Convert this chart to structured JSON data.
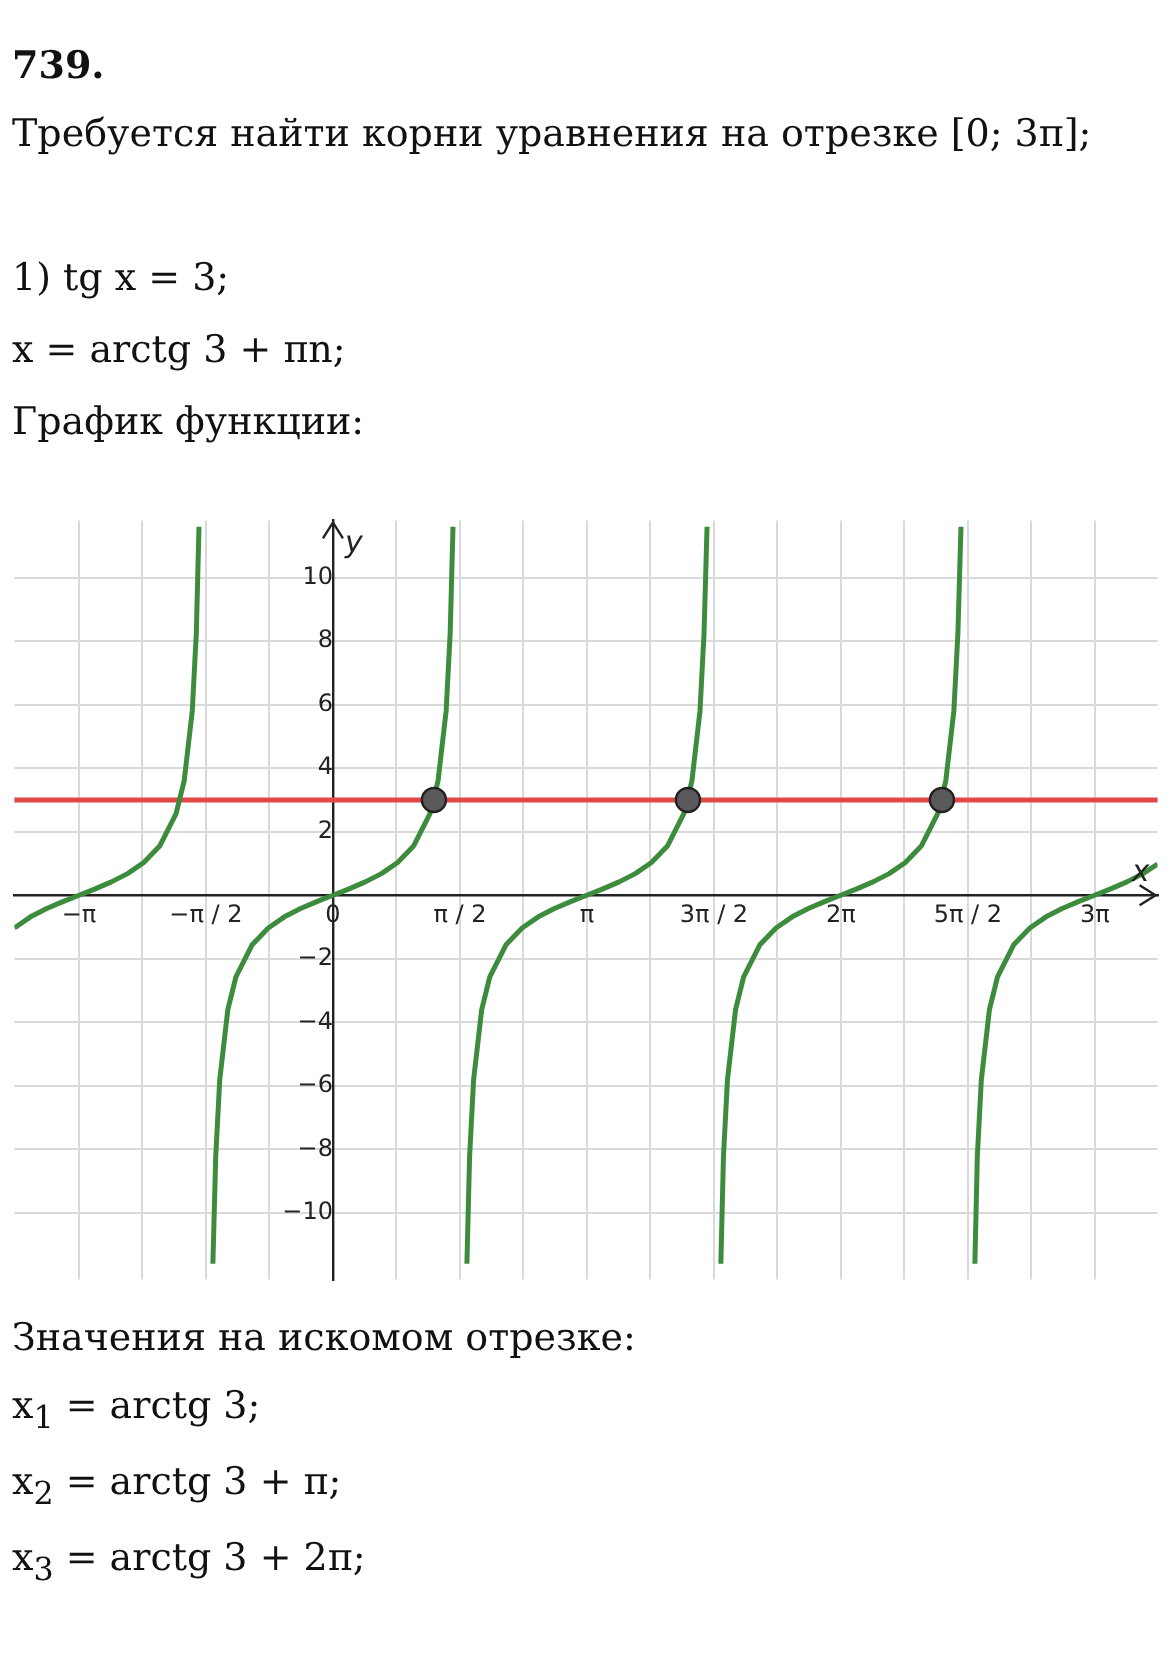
{
  "chart_data": {
    "type": "line",
    "title": "739.",
    "annotations": [
      "Требуется найти корни уравнения на отрезке [0; 3π];",
      "1) tg x = 3;",
      "x = arctg 3 + πn;",
      "График функции:",
      "Значения на искомом отрезке:",
      "x$_{1}$ = arctg 3;",
      "x$_{2}$ = arctg 3 + π;",
      "x$_{3}$ = arctg 3 + 2π;"
    ],
    "xlabel": "x",
    "ylabel": "y",
    "xlim": [
      -3.94,
      10.2
    ],
    "ylim": [
      -12.1,
      11.8
    ],
    "xticks": [
      {
        "value": -3.1416,
        "label": "−π"
      },
      {
        "value": -2.3562,
        "label": null
      },
      {
        "value": -1.5708,
        "label": "−π / 2"
      },
      {
        "value": -0.7854,
        "label": null
      },
      {
        "value": 0,
        "label": "0"
      },
      {
        "value": 0.7854,
        "label": null
      },
      {
        "value": 1.5708,
        "label": "π / 2"
      },
      {
        "value": 2.3562,
        "label": null
      },
      {
        "value": 3.1416,
        "label": "π"
      },
      {
        "value": 3.927,
        "label": null
      },
      {
        "value": 4.7124,
        "label": "3π / 2"
      },
      {
        "value": 5.4978,
        "label": null
      },
      {
        "value": 6.2832,
        "label": "2π"
      },
      {
        "value": 7.0686,
        "label": null
      },
      {
        "value": 7.854,
        "label": "5π / 2"
      },
      {
        "value": 8.6394,
        "label": null
      },
      {
        "value": 9.4248,
        "label": "3π"
      }
    ],
    "yticks": [
      -10,
      -8,
      -6,
      -4,
      -2,
      2,
      4,
      6,
      8,
      10
    ],
    "grid": true,
    "legend": false,
    "ref_lines": [
      {
        "axis": "y",
        "value": 3,
        "color": "#e04848"
      }
    ],
    "series": [
      {
        "color": "#3d8b3d",
        "x": [
          -3.94,
          -3.74,
          -3.54,
          -3.34,
          -3.14,
          -2.94,
          -2.74,
          -2.54,
          -2.34,
          -2.14,
          -1.94,
          -1.84,
          -1.74,
          -1.69,
          -1.657
        ],
        "values": [
          -1.03,
          -0.68,
          -0.42,
          -0.2,
          0,
          0.2,
          0.42,
          0.68,
          1.03,
          1.56,
          2.57,
          3.6,
          5.8,
          8.24,
          11.6
        ]
      },
      {
        "color": "#3d8b3d",
        "x": [
          -1.485,
          -1.45,
          -1.4,
          -1.3,
          -1.2,
          -1,
          -0.8,
          -0.6,
          -0.4,
          -0.2,
          0,
          0.2,
          0.4,
          0.6,
          0.8,
          1,
          1.2,
          1.3,
          1.4,
          1.45,
          1.485
        ],
        "values": [
          -11.6,
          -8.24,
          -5.8,
          -3.6,
          -2.57,
          -1.56,
          -1.03,
          -0.68,
          -0.42,
          -0.2,
          0,
          0.2,
          0.42,
          0.68,
          1.03,
          1.56,
          2.57,
          3.6,
          5.8,
          8.24,
          11.6
        ]
      },
      {
        "color": "#3d8b3d",
        "x": [
          1.657,
          1.69,
          1.74,
          1.84,
          1.94,
          2.14,
          2.34,
          2.54,
          2.74,
          2.94,
          3.14,
          3.34,
          3.54,
          3.74,
          3.94,
          4.14,
          4.34,
          4.44,
          4.54,
          4.59,
          4.627
        ],
        "values": [
          -11.6,
          -8.24,
          -5.8,
          -3.6,
          -2.57,
          -1.56,
          -1.03,
          -0.68,
          -0.42,
          -0.2,
          0,
          0.2,
          0.42,
          0.68,
          1.03,
          1.56,
          2.57,
          3.6,
          5.8,
          8.24,
          11.6
        ]
      },
      {
        "color": "#3d8b3d",
        "x": [
          4.798,
          4.83,
          4.88,
          4.98,
          5.08,
          5.28,
          5.48,
          5.68,
          5.88,
          6.08,
          6.28,
          6.48,
          6.68,
          6.88,
          7.08,
          7.28,
          7.48,
          7.58,
          7.68,
          7.73,
          7.768
        ],
        "values": [
          -11.6,
          -8.24,
          -5.8,
          -3.6,
          -2.57,
          -1.56,
          -1.03,
          -0.68,
          -0.42,
          -0.2,
          0,
          0.2,
          0.42,
          0.68,
          1.03,
          1.56,
          2.57,
          3.6,
          5.8,
          8.24,
          11.6
        ]
      },
      {
        "color": "#3d8b3d",
        "x": [
          7.94,
          7.97,
          8.02,
          8.12,
          8.22,
          8.42,
          8.62,
          8.82,
          9.02,
          9.22,
          9.42,
          9.62,
          9.82,
          10.02,
          10.2
        ],
        "values": [
          -11.6,
          -8.24,
          -5.8,
          -3.6,
          -2.57,
          -1.56,
          -1.03,
          -0.68,
          -0.42,
          -0.2,
          0,
          0.2,
          0.42,
          0.68,
          0.98
        ]
      },
      {
        "type": "scatter",
        "marker": "circle",
        "color": "#5a5a5a",
        "x": [
          1.249,
          4.391,
          7.532
        ],
        "values": [
          3,
          3,
          3
        ]
      }
    ]
  }
}
